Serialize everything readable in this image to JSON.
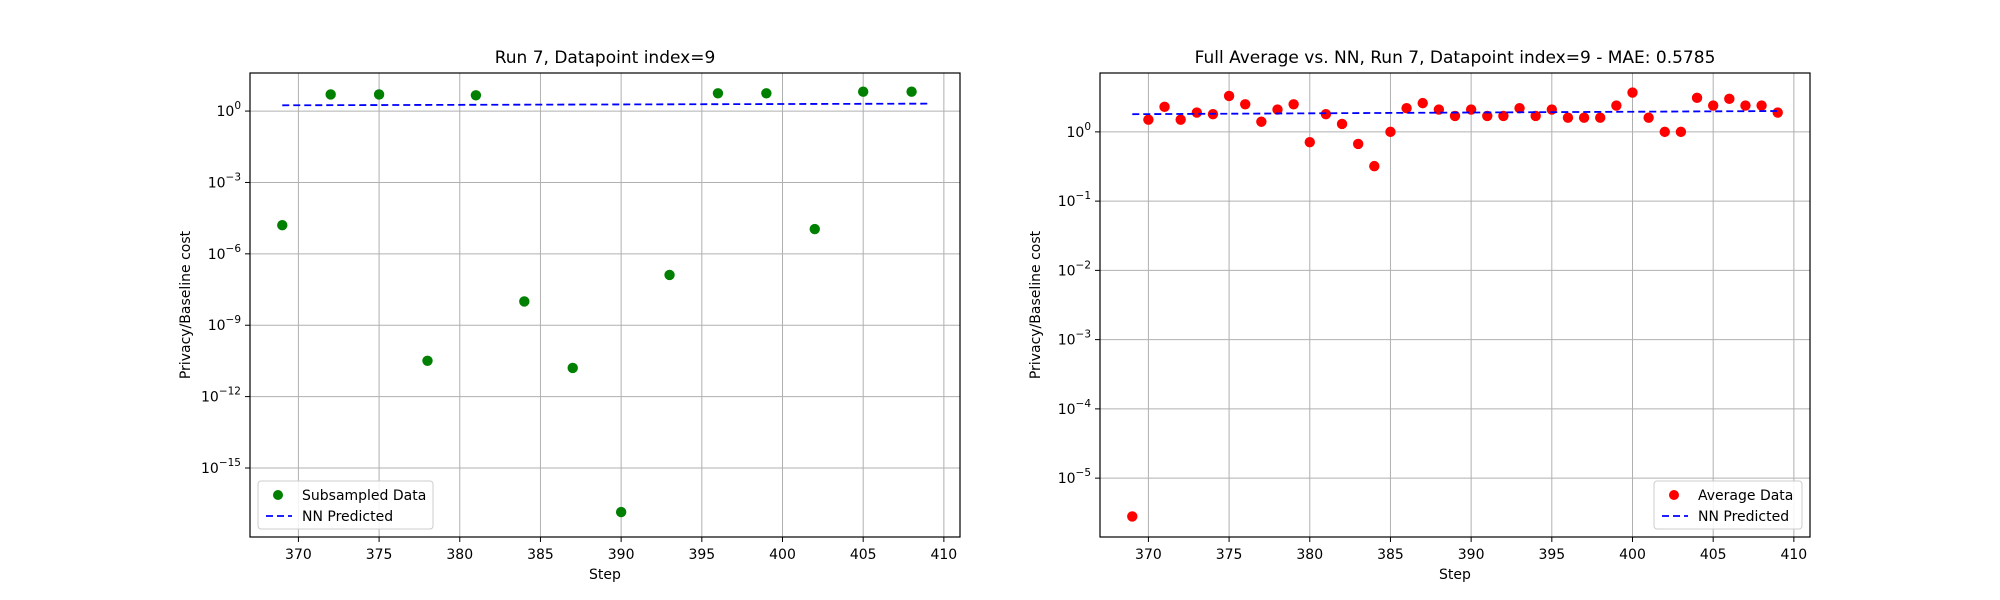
{
  "chart_data": [
    {
      "type": "scatter",
      "title": "Run 7, Datapoint index=9",
      "xlabel": "Step",
      "ylabel": "Privacy/Baseline cost",
      "yscale": "log",
      "xlim": [
        367,
        411
      ],
      "ylim_exp": [
        -17.9,
        1.6
      ],
      "xticks": [
        370,
        375,
        380,
        385,
        390,
        395,
        400,
        405,
        410
      ],
      "xtick_labels": [
        "370",
        "375",
        "380",
        "385",
        "390",
        "395",
        "400",
        "405",
        "410"
      ],
      "yticks_exp": [
        0,
        -3,
        -6,
        -9,
        -12,
        -15
      ],
      "ytick_labels": [
        {
          "base": "10",
          "exp": "0"
        },
        {
          "base": "10",
          "exp": "−3"
        },
        {
          "base": "10",
          "exp": "−6"
        },
        {
          "base": "10",
          "exp": "−9"
        },
        {
          "base": "10",
          "exp": "−12"
        },
        {
          "base": "10",
          "exp": "−15"
        }
      ],
      "grid": true,
      "legend_position": "lower-left",
      "series": [
        {
          "name": "Subsampled Data",
          "kind": "points",
          "color": "#008000",
          "x": [
            369,
            372,
            375,
            378,
            381,
            384,
            387,
            390,
            393,
            396,
            399,
            402,
            405,
            408
          ],
          "y": [
            1.6e-05,
            5.0,
            5.0,
            3.2e-11,
            4.6,
            1e-08,
            1.6e-11,
            1.4e-17,
            1.3e-07,
            5.6,
            5.6,
            1.1e-05,
            6.5,
            6.5
          ]
        },
        {
          "name": "NN Predicted",
          "kind": "dashed-line",
          "color": "#0000ff",
          "x": [
            369,
            409
          ],
          "y": [
            1.75,
            2.05
          ]
        }
      ]
    },
    {
      "type": "scatter",
      "title": "Full Average vs. NN, Run 7, Datapoint index=9 - MAE: 0.5785",
      "xlabel": "Step",
      "ylabel": "Privacy/Baseline cost",
      "yscale": "log",
      "xlim": [
        367,
        411
      ],
      "ylim_exp": [
        -5.85,
        0.85
      ],
      "xticks": [
        370,
        375,
        380,
        385,
        390,
        395,
        400,
        405,
        410
      ],
      "xtick_labels": [
        "370",
        "375",
        "380",
        "385",
        "390",
        "395",
        "400",
        "405",
        "410"
      ],
      "yticks_exp": [
        0,
        -1,
        -2,
        -3,
        -4,
        -5
      ],
      "ytick_labels": [
        {
          "base": "10",
          "exp": "0"
        },
        {
          "base": "10",
          "exp": "−1"
        },
        {
          "base": "10",
          "exp": "−2"
        },
        {
          "base": "10",
          "exp": "−3"
        },
        {
          "base": "10",
          "exp": "−4"
        },
        {
          "base": "10",
          "exp": "−5"
        }
      ],
      "grid": true,
      "legend_position": "lower-right",
      "series": [
        {
          "name": "Average Data",
          "kind": "points",
          "color": "#ff0000",
          "x": [
            369,
            370,
            371,
            372,
            373,
            374,
            375,
            376,
            377,
            378,
            379,
            380,
            381,
            382,
            383,
            384,
            385,
            386,
            387,
            388,
            389,
            390,
            391,
            392,
            393,
            394,
            395,
            396,
            397,
            398,
            399,
            400,
            401,
            402,
            403,
            404,
            405,
            406,
            407,
            408,
            409
          ],
          "y": [
            2.8e-06,
            1.5,
            2.3,
            1.5,
            1.9,
            1.8,
            3.3,
            2.5,
            1.4,
            2.1,
            2.5,
            0.71,
            1.8,
            1.3,
            0.67,
            0.32,
            1.0,
            2.2,
            2.6,
            2.1,
            1.7,
            2.1,
            1.7,
            1.7,
            2.2,
            1.7,
            2.1,
            1.6,
            1.6,
            1.6,
            2.4,
            3.7,
            1.6,
            1.0,
            1.0,
            3.1,
            2.4,
            3.0,
            2.4,
            2.4,
            1.9
          ]
        },
        {
          "name": "NN Predicted",
          "kind": "dashed-line",
          "color": "#0000ff",
          "x": [
            369,
            409
          ],
          "y": [
            1.8,
            2.0
          ]
        }
      ]
    }
  ]
}
